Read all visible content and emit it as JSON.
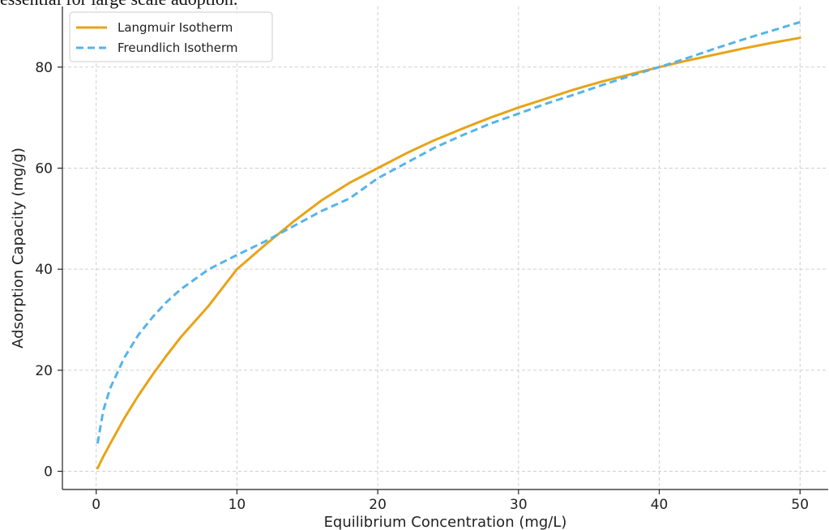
{
  "caption": "essential for large scale adoption.",
  "chart_data": {
    "type": "line",
    "title": "",
    "xlabel": "Equilibrium Concentration (mg/L)",
    "ylabel": "Adsorption Capacity (mg/g)",
    "xlim": [
      -2.4,
      52.0
    ],
    "ylim": [
      -3.6,
      92.0
    ],
    "xticks": [
      0,
      10,
      20,
      30,
      40,
      50
    ],
    "yticks": [
      0,
      20,
      40,
      60,
      80
    ],
    "grid": true,
    "legend_position": "top-left",
    "x": [
      0.1,
      0.5,
      1,
      2,
      3,
      4,
      5,
      6,
      8,
      10,
      12,
      14,
      16,
      18,
      20,
      22,
      24,
      26,
      28,
      30,
      32,
      34,
      36,
      38,
      40,
      42,
      44,
      46,
      48,
      50
    ],
    "series": [
      {
        "name": "Langmuir Isotherm",
        "color": "#E8A317",
        "style": "solid",
        "values": [
          0.6,
          2.9,
          5.5,
          10.5,
          15.0,
          19.1,
          22.9,
          26.5,
          32.8,
          40.0,
          44.8,
          49.4,
          53.6,
          57.1,
          60.0,
          62.9,
          65.5,
          67.8,
          70.0,
          72.0,
          73.8,
          75.6,
          77.2,
          78.6,
          80.0,
          81.3,
          82.5,
          83.7,
          84.8,
          85.8
        ]
      },
      {
        "name": "Freundlich Isotherm",
        "color": "#56B4E9",
        "style": "dashed",
        "values": [
          5.5,
          12.0,
          16.5,
          22.5,
          27.0,
          30.5,
          33.5,
          36.0,
          40.0,
          42.8,
          45.5,
          48.5,
          51.5,
          54.0,
          58.0,
          61.0,
          64.0,
          66.5,
          68.8,
          70.8,
          72.8,
          74.6,
          76.5,
          78.3,
          80.0,
          81.8,
          83.7,
          85.5,
          87.2,
          88.9
        ]
      }
    ]
  }
}
